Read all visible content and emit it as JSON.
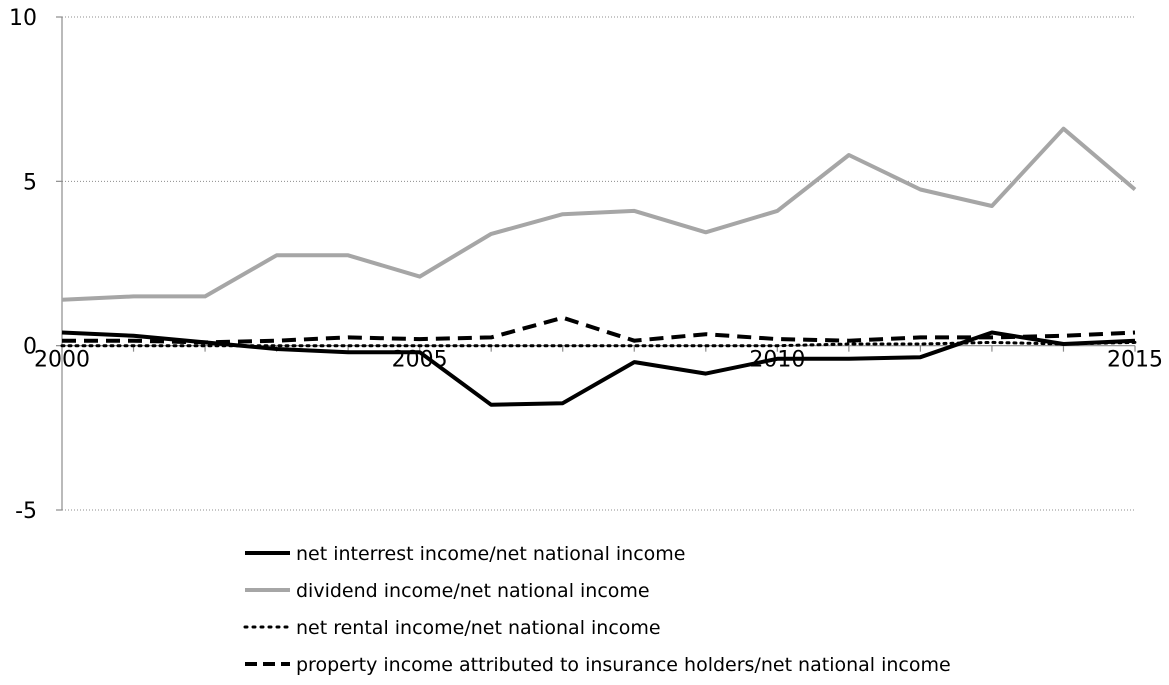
{
  "chart_data": {
    "type": "line",
    "title": "",
    "xlabel": "",
    "ylabel": "",
    "x": [
      2000,
      2001,
      2002,
      2003,
      2004,
      2005,
      2006,
      2007,
      2008,
      2009,
      2010,
      2011,
      2012,
      2013,
      2014,
      2015
    ],
    "xlim": [
      2000,
      2015
    ],
    "ylim": [
      -5,
      10
    ],
    "x_ticks": [
      2000,
      2005,
      2010,
      2015
    ],
    "y_ticks": [
      10,
      5,
      0,
      -5
    ],
    "grid": "horizontal dotted",
    "legend_position": "bottom",
    "series": [
      {
        "name": "net interrest income/net national income",
        "style": "solid",
        "color": "#000000",
        "values": [
          0.4,
          0.3,
          0.1,
          -0.1,
          -0.2,
          -0.2,
          -1.8,
          -1.75,
          -0.5,
          -0.85,
          -0.4,
          -0.4,
          -0.35,
          0.4,
          0.05,
          0.15
        ]
      },
      {
        "name": "dividend income/net national income",
        "style": "solid",
        "color": "#a6a6a6",
        "values": [
          1.4,
          1.5,
          1.5,
          2.75,
          2.75,
          2.1,
          3.4,
          4.0,
          4.1,
          3.45,
          4.1,
          5.8,
          4.75,
          4.25,
          6.6,
          4.75
        ]
      },
      {
        "name": "net rental income/net national income",
        "style": "dotted",
        "color": "#000000",
        "values": [
          0.0,
          0.0,
          0.0,
          0.0,
          0.0,
          0.0,
          0.0,
          0.0,
          0.0,
          0.0,
          0.0,
          0.05,
          0.05,
          0.1,
          0.05,
          0.1
        ]
      },
      {
        "name": "property income attributed to insurance holders/net national income",
        "style": "dashed",
        "color": "#000000",
        "values": [
          0.15,
          0.15,
          0.1,
          0.15,
          0.25,
          0.2,
          0.25,
          0.85,
          0.15,
          0.35,
          0.2,
          0.15,
          0.25,
          0.25,
          0.3,
          0.4
        ]
      }
    ]
  }
}
